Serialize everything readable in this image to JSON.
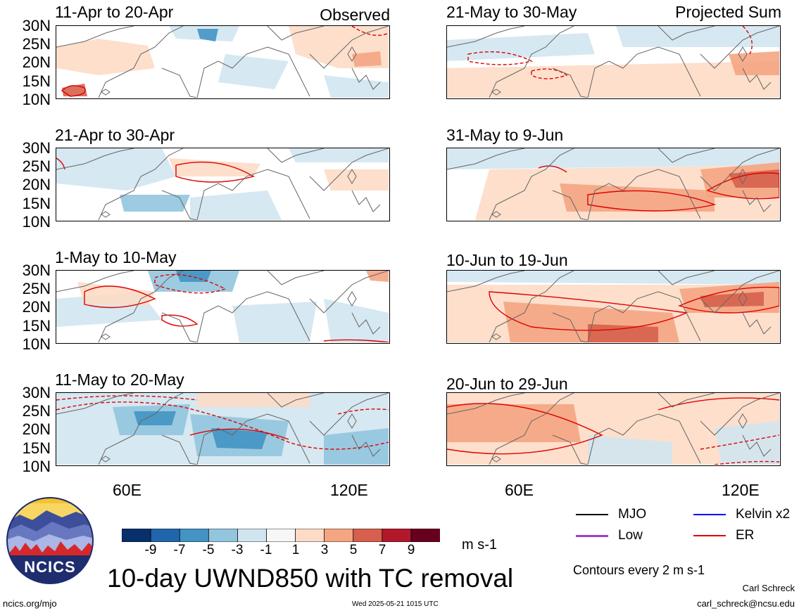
{
  "headers": {
    "left": "Observed",
    "right": "Projected Sum"
  },
  "panels": {
    "p1": {
      "title": "11-Apr to 20-Apr"
    },
    "p2": {
      "title": "21-Apr to 30-Apr"
    },
    "p3": {
      "title": "1-May to 10-May"
    },
    "p4": {
      "title": "11-May to 20-May"
    },
    "p5": {
      "title": "21-May to 30-May"
    },
    "p6": {
      "title": "31-May to 9-Jun"
    },
    "p7": {
      "title": "10-Jun to 19-Jun"
    },
    "p8": {
      "title": "20-Jun to 29-Jun"
    }
  },
  "lat_labels": [
    "30N",
    "25N",
    "20N",
    "15N",
    "10N"
  ],
  "lon_labels": [
    "60E",
    "120E"
  ],
  "colorbar": {
    "ticks": [
      "-9",
      "-7",
      "-5",
      "-3",
      "-1",
      "1",
      "3",
      "5",
      "7",
      "9"
    ],
    "colors": [
      "#08306b",
      "#2166ac",
      "#4393c3",
      "#92c5de",
      "#d1e5f0",
      "#f7f7f7",
      "#fddbc7",
      "#f4a582",
      "#d6604d",
      "#b2182b",
      "#67001f"
    ],
    "units": "m s-1"
  },
  "legend": {
    "mjo": "MJO",
    "mjo_color": "#000000",
    "kelvin": "Kelvin x2",
    "kelvin_color": "#0000ff",
    "low": "Low",
    "low_color": "#a040c0",
    "er": "ER",
    "er_color": "#e00000",
    "contours_note": "Contours every 2 m s-1"
  },
  "logo": {
    "text": "NCICS"
  },
  "main_title": "10-day UWND850 with TC removal",
  "footer": {
    "url": "ncics.org/mjo",
    "timestamp": "Wed 2025-05-21 1015 UTC",
    "author": "Carl Schreck",
    "email": "carl_schreck@ncsu.edu"
  }
}
